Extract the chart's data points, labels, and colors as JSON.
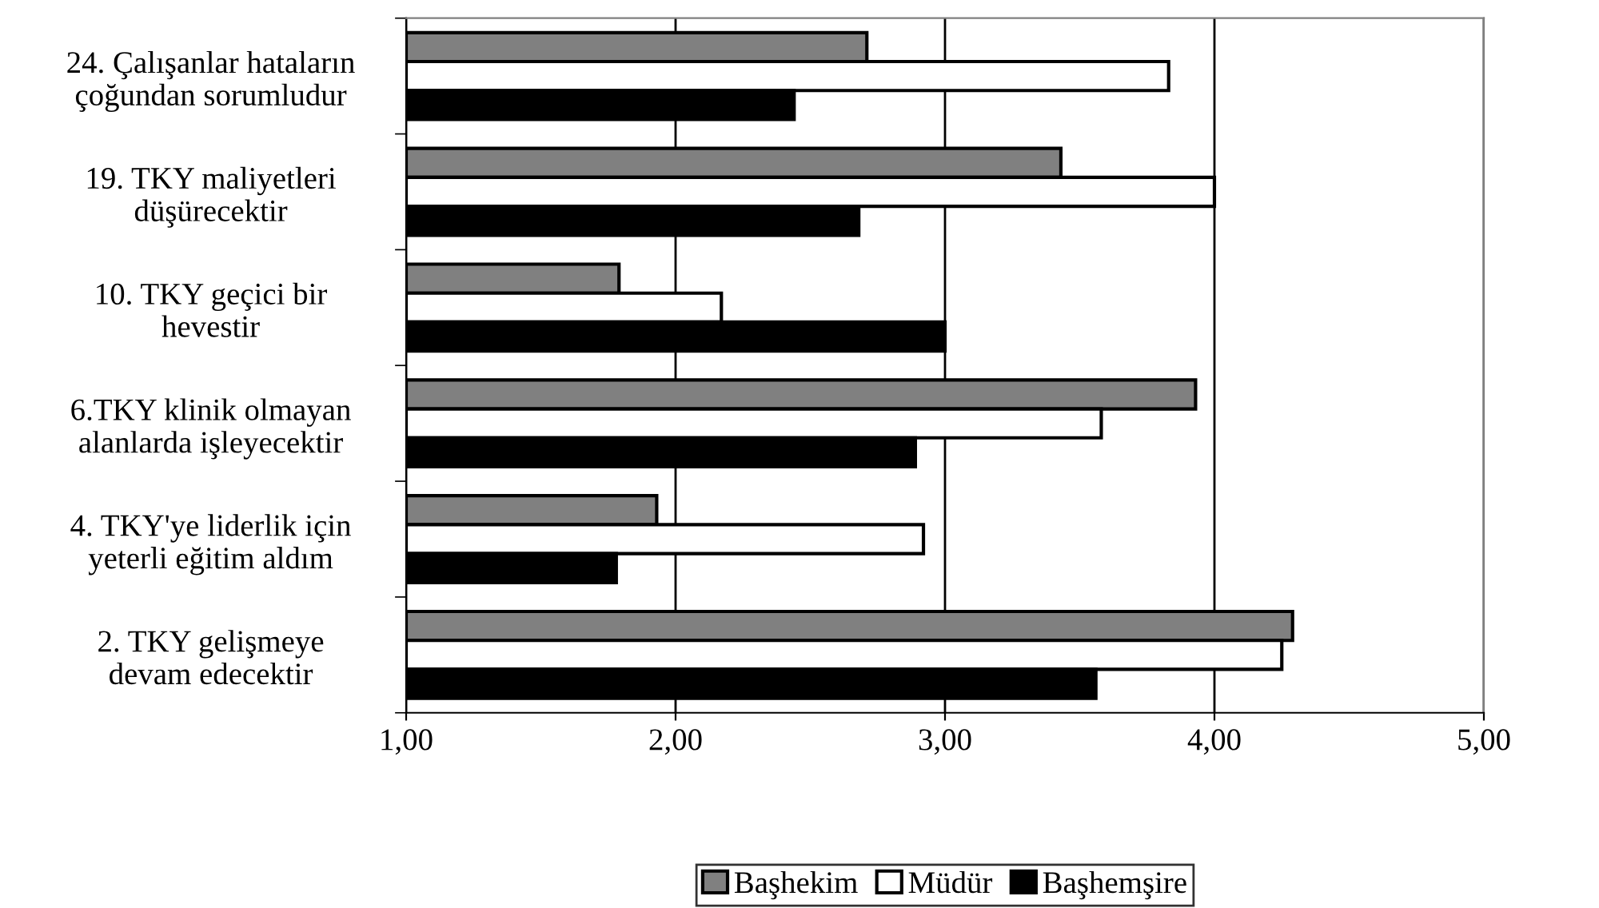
{
  "chart_data": {
    "type": "bar",
    "orientation": "horizontal",
    "categories": [
      "24. Çalışanlar hataların\nçoğundan sorumludur",
      "19. TKY maliyetleri\ndüşürecektir",
      "10. TKY geçici bir\nhevestir",
      "6.TKY klinik olmayan\nalanlarda işleyecektir",
      "4. TKY'ye liderlik için\nyeterli eğitim aldım",
      "2. TKY gelişmeye\ndevam edecektir"
    ],
    "series": [
      {
        "name": "Başhekim",
        "color": "#808080",
        "values": [
          2.71,
          3.43,
          1.79,
          3.93,
          1.93,
          4.29
        ]
      },
      {
        "name": "Müdür",
        "color": "#ffffff",
        "values": [
          3.83,
          4.0,
          2.17,
          3.58,
          2.92,
          4.25
        ]
      },
      {
        "name": "Başhemşire",
        "color": "#000000",
        "values": [
          2.44,
          2.68,
          3.0,
          2.89,
          1.78,
          3.56
        ]
      }
    ],
    "xlim": [
      1,
      5
    ],
    "xticks": [
      {
        "value": 1,
        "label": "1,00"
      },
      {
        "value": 2,
        "label": "2,00"
      },
      {
        "value": 3,
        "label": "3,00"
      },
      {
        "value": 4,
        "label": "4,00"
      },
      {
        "value": 5,
        "label": "5,00"
      }
    ],
    "grid": "x",
    "legend": "bottom"
  }
}
